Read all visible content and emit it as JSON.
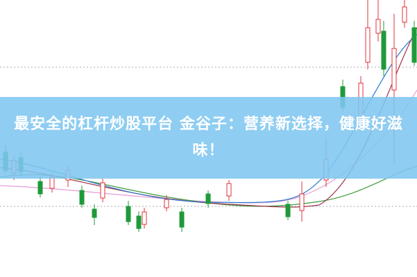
{
  "headline": {
    "text": "最安全的杠杆炒股平台 金谷子：营养新选择，健康好滋味！"
  }
}
